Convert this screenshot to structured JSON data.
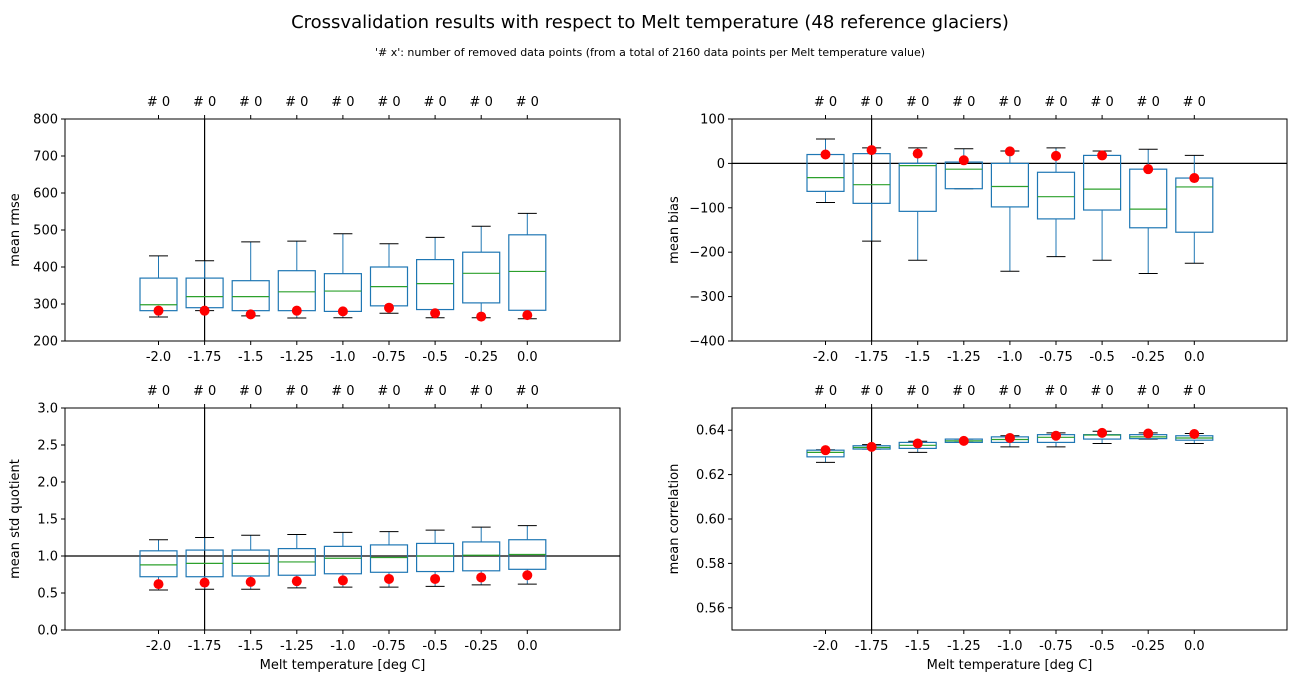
{
  "figure": {
    "title": "Crossvalidation results with respect to Melt temperature  (48 reference glaciers)",
    "subtitle": "'# x': number of removed data points (from a total of 2160 data points per Melt temperature value)"
  },
  "colors": {
    "box": "#1f77b4",
    "median": "#2ca02c",
    "marker": "#ff0000",
    "axis": "#000000",
    "background": "#ffffff"
  },
  "chart_data": [
    {
      "type": "box",
      "categories": [
        "-2.0",
        "-1.75",
        "-1.5",
        "-1.25",
        "-1.0",
        "-0.75",
        "-0.5",
        "-0.25",
        "0.0"
      ],
      "top_labels": [
        "# 0",
        "# 0",
        "# 0",
        "# 0",
        "# 0",
        "# 0",
        "# 0",
        "# 0",
        "# 0"
      ],
      "xlabel": "",
      "ylabel": "mean rmse",
      "ylim": [
        200,
        800
      ],
      "yticks": [
        "200",
        "300",
        "400",
        "500",
        "600",
        "700",
        "800"
      ],
      "vline": "-1.75",
      "boxes": [
        {
          "whislo": 265,
          "q1": 282,
          "med": 298,
          "q3": 370,
          "whishi": 430
        },
        {
          "whislo": 282,
          "q1": 290,
          "med": 320,
          "q3": 370,
          "whishi": 417
        },
        {
          "whislo": 268,
          "q1": 282,
          "med": 320,
          "q3": 363,
          "whishi": 468
        },
        {
          "whislo": 262,
          "q1": 282,
          "med": 333,
          "q3": 390,
          "whishi": 470
        },
        {
          "whislo": 263,
          "q1": 280,
          "med": 335,
          "q3": 382,
          "whishi": 490
        },
        {
          "whislo": 275,
          "q1": 295,
          "med": 347,
          "q3": 400,
          "whishi": 463
        },
        {
          "whislo": 263,
          "q1": 285,
          "med": 355,
          "q3": 420,
          "whishi": 480
        },
        {
          "whislo": 263,
          "q1": 303,
          "med": 383,
          "q3": 440,
          "whishi": 510
        },
        {
          "whislo": 260,
          "q1": 283,
          "med": 388,
          "q3": 487,
          "whishi": 545
        }
      ],
      "markers": [
        282,
        282,
        272,
        282,
        280,
        290,
        275,
        266,
        270
      ]
    },
    {
      "type": "box",
      "categories": [
        "-2.0",
        "-1.75",
        "-1.5",
        "-1.25",
        "-1.0",
        "-0.75",
        "-0.5",
        "-0.25",
        "0.0"
      ],
      "top_labels": [
        "# 0",
        "# 0",
        "# 0",
        "# 0",
        "# 0",
        "# 0",
        "# 0",
        "# 0",
        "# 0"
      ],
      "xlabel": "",
      "ylabel": "mean bias",
      "ylim": [
        -400,
        100
      ],
      "yticks": [
        "−400",
        "−300",
        "−200",
        "−100",
        "0",
        "100"
      ],
      "hline": 0,
      "vline": "-1.75",
      "boxes": [
        {
          "whislo": -88,
          "q1": -63,
          "med": -32,
          "q3": 20,
          "whishi": 55
        },
        {
          "whislo": -175,
          "q1": -90,
          "med": -48,
          "q3": 22,
          "whishi": 35
        },
        {
          "whislo": -218,
          "q1": -108,
          "med": -5,
          "q3": 0,
          "whishi": 35
        },
        {
          "whislo": -57,
          "q1": -57,
          "med": -13,
          "q3": 3,
          "whishi": 33
        },
        {
          "whislo": -243,
          "q1": -98,
          "med": -52,
          "q3": 0,
          "whishi": 28
        },
        {
          "whislo": -210,
          "q1": -125,
          "med": -75,
          "q3": -20,
          "whishi": 35
        },
        {
          "whislo": -218,
          "q1": -105,
          "med": -58,
          "q3": 18,
          "whishi": 28
        },
        {
          "whislo": -248,
          "q1": -145,
          "med": -103,
          "q3": -13,
          "whishi": 32
        },
        {
          "whislo": -225,
          "q1": -155,
          "med": -53,
          "q3": -33,
          "whishi": 18
        }
      ],
      "markers": [
        20,
        30,
        22,
        7,
        27,
        17,
        18,
        -13,
        -33
      ]
    },
    {
      "type": "box",
      "categories": [
        "-2.0",
        "-1.75",
        "-1.5",
        "-1.25",
        "-1.0",
        "-0.75",
        "-0.5",
        "-0.25",
        "0.0"
      ],
      "top_labels": [
        "# 0",
        "# 0",
        "# 0",
        "# 0",
        "# 0",
        "# 0",
        "# 0",
        "# 0",
        "# 0"
      ],
      "xlabel": "Melt temperature [deg C]",
      "ylabel": "mean std quotient",
      "ylim": [
        0.0,
        3.0
      ],
      "yticks": [
        "0.0",
        "0.5",
        "1.0",
        "1.5",
        "2.0",
        "2.5",
        "3.0"
      ],
      "hline": 1.0,
      "vline": "-1.75",
      "boxes": [
        {
          "whislo": 0.54,
          "q1": 0.72,
          "med": 0.88,
          "q3": 1.07,
          "whishi": 1.22
        },
        {
          "whislo": 0.55,
          "q1": 0.72,
          "med": 0.9,
          "q3": 1.08,
          "whishi": 1.25
        },
        {
          "whislo": 0.55,
          "q1": 0.73,
          "med": 0.9,
          "q3": 1.08,
          "whishi": 1.28
        },
        {
          "whislo": 0.57,
          "q1": 0.74,
          "med": 0.92,
          "q3": 1.1,
          "whishi": 1.29
        },
        {
          "whislo": 0.58,
          "q1": 0.76,
          "med": 0.97,
          "q3": 1.13,
          "whishi": 1.32
        },
        {
          "whislo": 0.58,
          "q1": 0.78,
          "med": 0.98,
          "q3": 1.15,
          "whishi": 1.33
        },
        {
          "whislo": 0.59,
          "q1": 0.79,
          "med": 1.0,
          "q3": 1.17,
          "whishi": 1.35
        },
        {
          "whislo": 0.61,
          "q1": 0.8,
          "med": 1.01,
          "q3": 1.19,
          "whishi": 1.39
        },
        {
          "whislo": 0.62,
          "q1": 0.82,
          "med": 1.02,
          "q3": 1.22,
          "whishi": 1.41
        }
      ],
      "markers": [
        0.62,
        0.64,
        0.65,
        0.66,
        0.67,
        0.69,
        0.69,
        0.71,
        0.74
      ]
    },
    {
      "type": "box",
      "categories": [
        "-2.0",
        "-1.75",
        "-1.5",
        "-1.25",
        "-1.0",
        "-0.75",
        "-0.5",
        "-0.25",
        "0.0"
      ],
      "top_labels": [
        "# 0",
        "# 0",
        "# 0",
        "# 0",
        "# 0",
        "# 0",
        "# 0",
        "# 0",
        "# 0"
      ],
      "xlabel": "Melt temperature [deg C]",
      "ylabel": "mean correlation",
      "ylim": [
        0.55,
        0.65
      ],
      "yticks": [
        "0.56",
        "0.58",
        "0.60",
        "0.62",
        "0.64"
      ],
      "ytickvals": [
        0.56,
        0.58,
        0.6,
        0.62,
        0.64
      ],
      "vline": "-1.75",
      "boxes": [
        {
          "whislo": 0.6255,
          "q1": 0.628,
          "med": 0.63,
          "q3": 0.631,
          "whishi": 0.6312
        },
        {
          "whislo": 0.6315,
          "q1": 0.6315,
          "med": 0.6322,
          "q3": 0.633,
          "whishi": 0.6335
        },
        {
          "whislo": 0.63,
          "q1": 0.6318,
          "med": 0.6332,
          "q3": 0.6345,
          "whishi": 0.635
        },
        {
          "whislo": 0.6345,
          "q1": 0.6345,
          "med": 0.6352,
          "q3": 0.636,
          "whishi": 0.636
        },
        {
          "whislo": 0.6325,
          "q1": 0.6345,
          "med": 0.6358,
          "q3": 0.637,
          "whishi": 0.6375
        },
        {
          "whislo": 0.6325,
          "q1": 0.6345,
          "med": 0.6368,
          "q3": 0.638,
          "whishi": 0.6388
        },
        {
          "whislo": 0.634,
          "q1": 0.636,
          "med": 0.6378,
          "q3": 0.638,
          "whishi": 0.6395
        },
        {
          "whislo": 0.636,
          "q1": 0.6362,
          "med": 0.637,
          "q3": 0.638,
          "whishi": 0.6388
        },
        {
          "whislo": 0.634,
          "q1": 0.6355,
          "med": 0.6365,
          "q3": 0.6375,
          "whishi": 0.6385
        }
      ],
      "markers": [
        0.631,
        0.6325,
        0.634,
        0.6352,
        0.6365,
        0.6375,
        0.6388,
        0.6385,
        0.6383
      ]
    }
  ]
}
